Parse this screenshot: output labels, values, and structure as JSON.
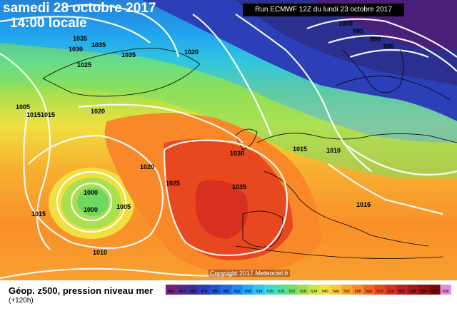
{
  "header": {
    "date": "samedi 28 octobre 2017",
    "time": "14:00 locale",
    "run": "Run ECMWF 12Z du lundi 23 octobre 2017"
  },
  "copyright": "Copyright 2017 Meteociel.fr",
  "caption": {
    "title": "Géop. z500, pression niveau mer",
    "subtitle": "(+120h)"
  },
  "isobar_labels": [
    "1035",
    "1030",
    "1035",
    "1035",
    "1025",
    "1020",
    "1005",
    "1015",
    "1015",
    "1020",
    "1000",
    "995",
    "990",
    "985",
    "1030",
    "1015",
    "1010",
    "1020",
    "1025",
    "1035",
    "1000",
    "1000",
    "1005",
    "1015",
    "1010",
    "1015"
  ],
  "colorscale": {
    "colors": [
      "#7a1f7a",
      "#5a2a8a",
      "#3b2f9a",
      "#2a3fb8",
      "#2155d0",
      "#1e6ee0",
      "#1e8af0",
      "#25a8f5",
      "#30c5f0",
      "#3fd9d0",
      "#50e0a0",
      "#6fe070",
      "#a0e050",
      "#cfe840",
      "#f0e040",
      "#f8c838",
      "#f8a830",
      "#f88828",
      "#f06820",
      "#e84820",
      "#d83020",
      "#c02020",
      "#a81818",
      "#901010",
      "#7a0a0a",
      "#e090e0"
    ],
    "labels": [
      "456",
      "462",
      "468",
      "474",
      "480",
      "486",
      "492",
      "498",
      "504",
      "510",
      "516",
      "522",
      "528",
      "534",
      "540",
      "546",
      "552",
      "558",
      "564",
      "570",
      "576",
      "582",
      "588",
      "594",
      "600",
      "606"
    ]
  }
}
